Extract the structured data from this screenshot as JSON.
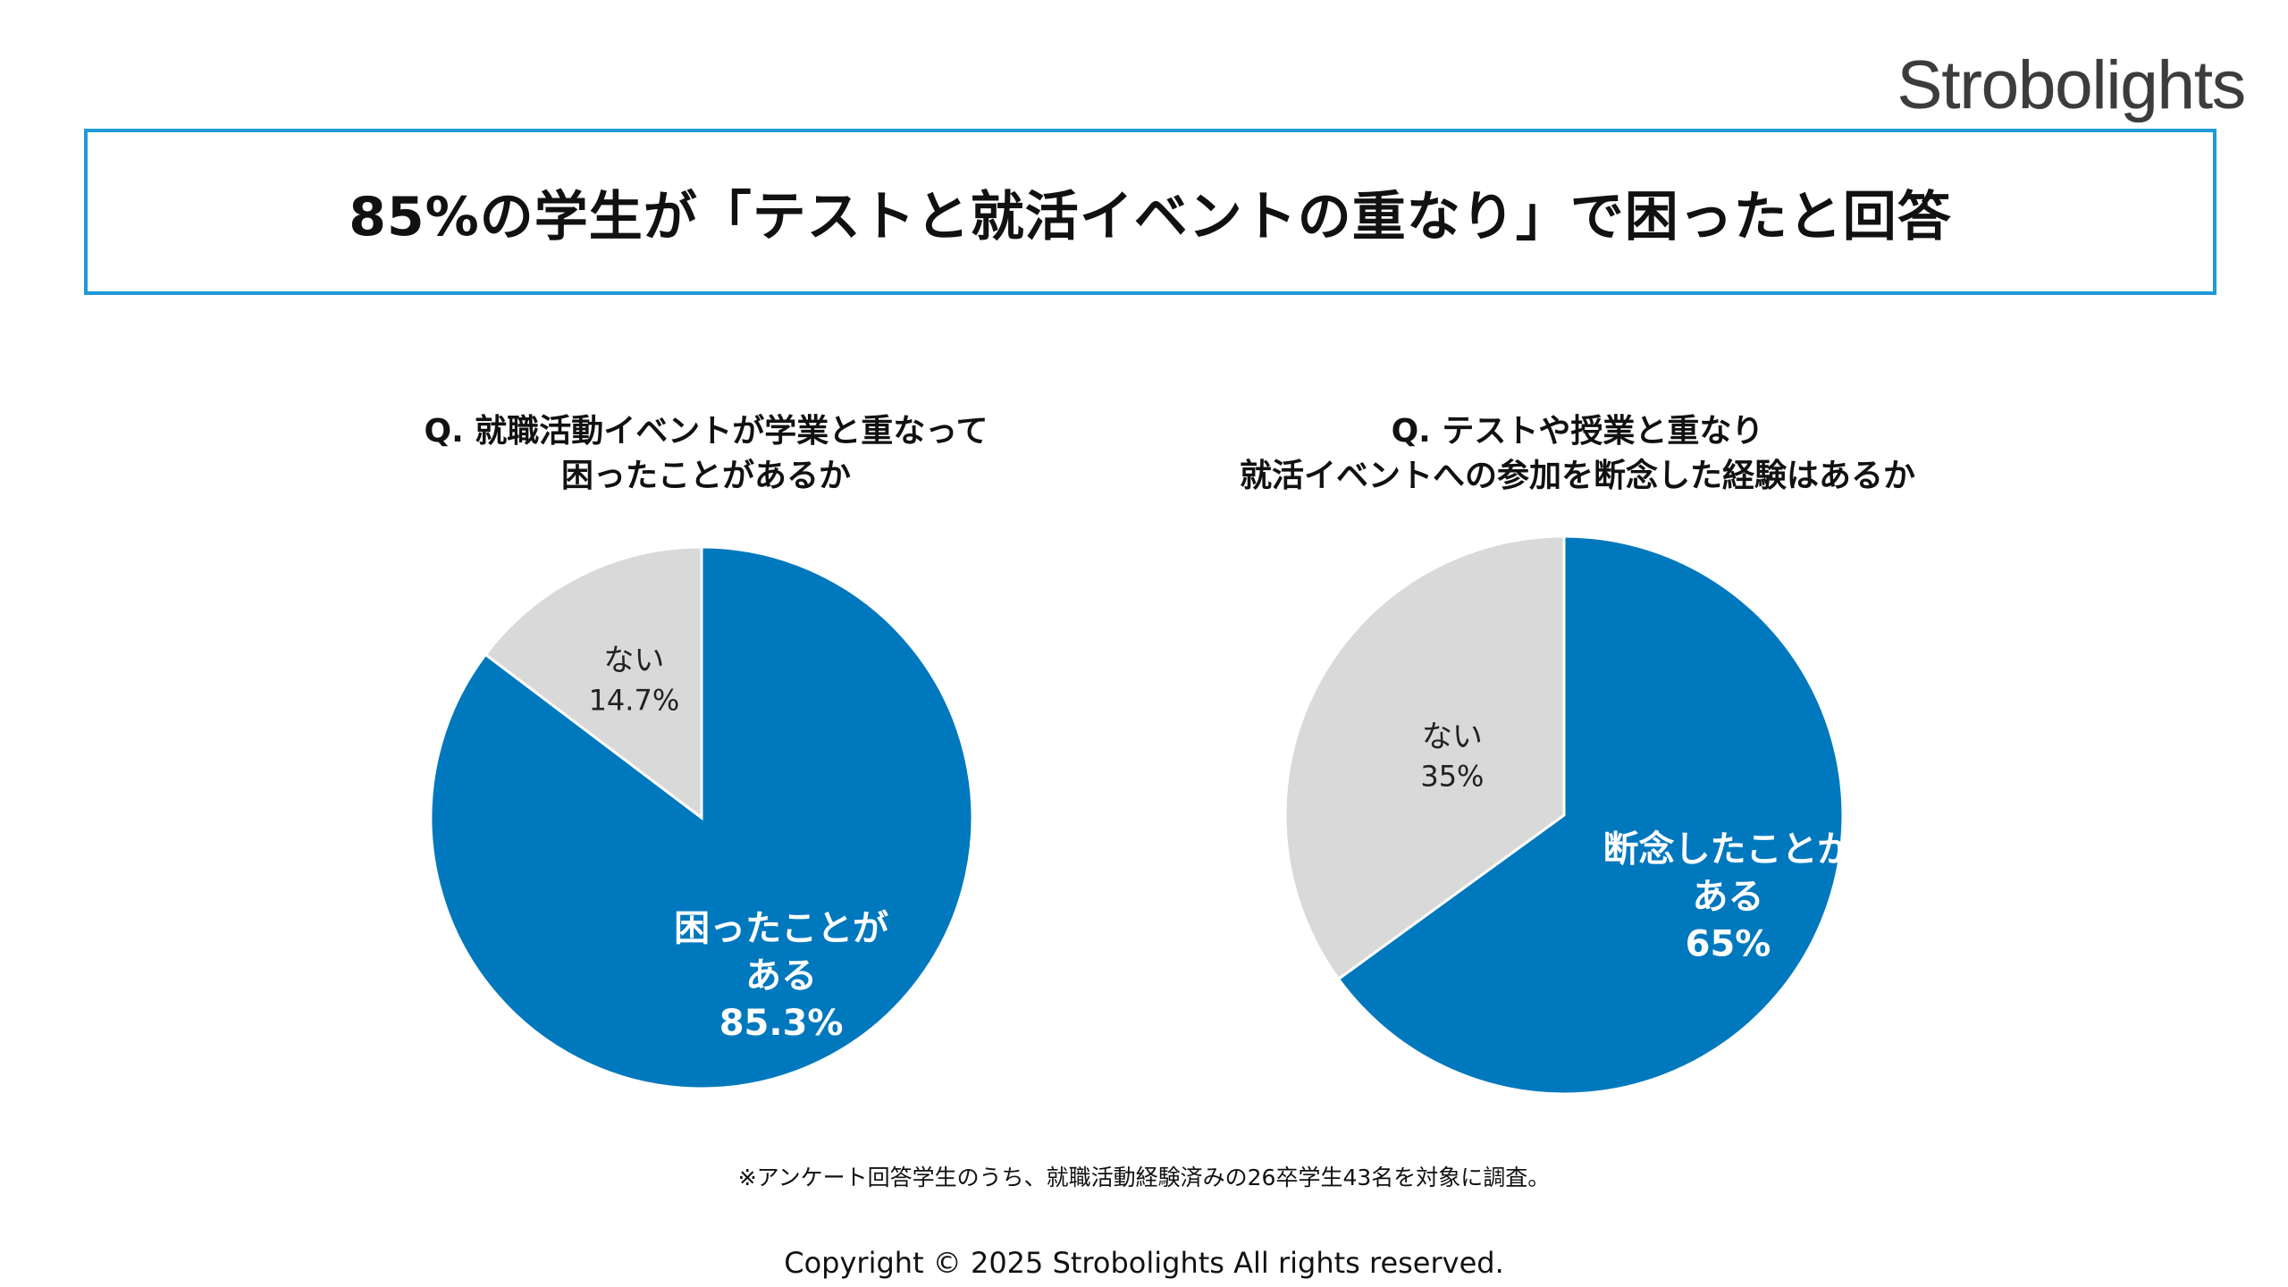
{
  "brand": "Strobolights",
  "title": "85%の学生が「テストと就活イベントの重なり」で困ったと回答",
  "colors": {
    "accent": "#0078BE",
    "border": "#1E9AD6",
    "gray": "#D9D9D9"
  },
  "chart_data": [
    {
      "type": "pie",
      "question_lines": [
        "Q. 就職活動イベントが学業と重なって",
        "困ったことがあるか"
      ],
      "slices": [
        {
          "label_lines": [
            "困ったことが",
            "ある"
          ],
          "value": 85.3,
          "value_label": "85.3%",
          "color": "#0078BE",
          "text_color": "#FFFFFF",
          "bold": true
        },
        {
          "label_lines": [
            "ない"
          ],
          "value": 14.7,
          "value_label": "14.7%",
          "color": "#D9D9D9",
          "text_color": "#222222",
          "bold": false
        }
      ]
    },
    {
      "type": "pie",
      "question_lines": [
        "Q. テストや授業と重なり",
        "就活イベントへの参加を断念した経験はあるか"
      ],
      "slices": [
        {
          "label_lines": [
            "断念したことが",
            "ある"
          ],
          "value": 65,
          "value_label": "65%",
          "color": "#0078BE",
          "text_color": "#FFFFFF",
          "bold": true
        },
        {
          "label_lines": [
            "ない"
          ],
          "value": 35,
          "value_label": "35%",
          "color": "#D9D9D9",
          "text_color": "#222222",
          "bold": false
        }
      ]
    }
  ],
  "footnote": "※アンケート回答学生のうち、就職活動経験済みの26卒学生43名を対象に調査。",
  "copyright": "Copyright © 2025 Strobolights All rights reserved."
}
